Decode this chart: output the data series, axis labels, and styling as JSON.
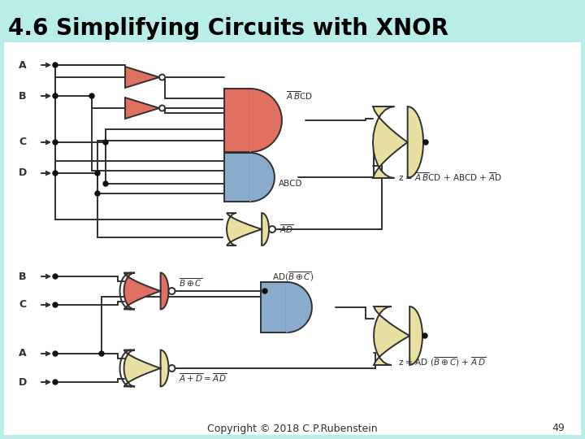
{
  "title": "4.6 Simplifying Circuits with XNOR",
  "title_fontsize": 20,
  "title_color": "#000000",
  "background_color": "#b8ede8",
  "white_bg": "#ffffff",
  "copyright_text": "Copyright © 2018 C.P.Rubenstein",
  "page_number": "49",
  "footer_fontsize": 9,
  "gate_salmon": "#e07060",
  "gate_blue": "#8aaccc",
  "gate_tan": "#e8dfa0",
  "line_color": "#303030",
  "dot_color": "#101010",
  "label_fontsize": 8.5
}
